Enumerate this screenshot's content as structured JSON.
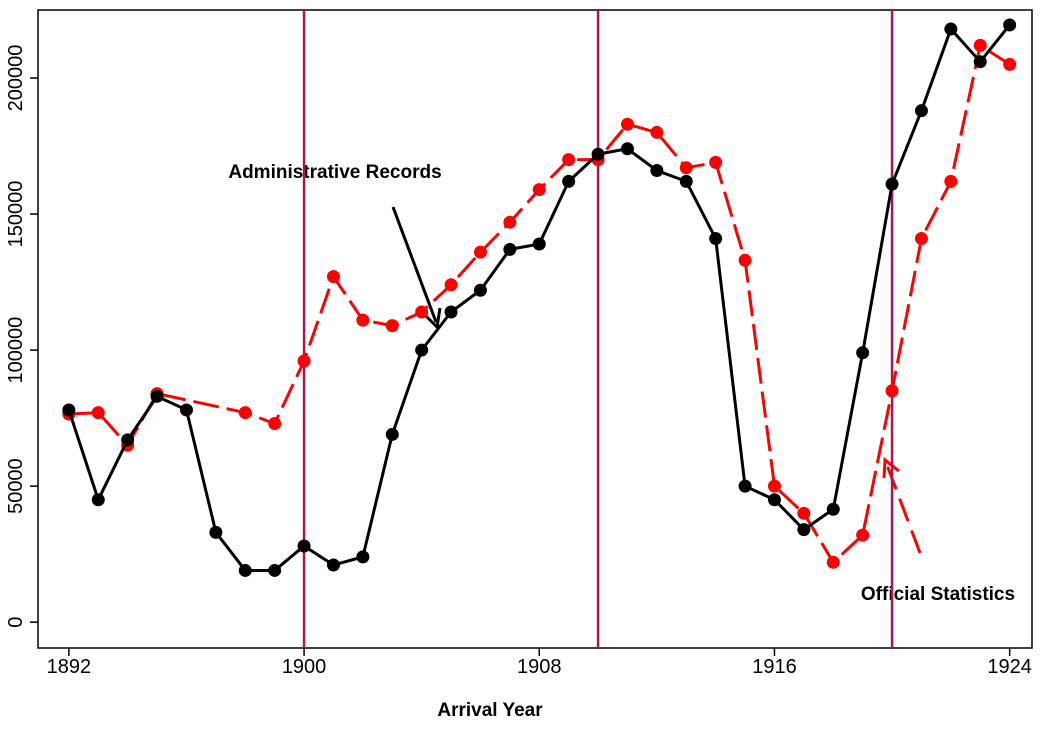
{
  "chart_data": {
    "type": "line",
    "x_label": "Arrival Year",
    "xlim": [
      1890.95,
      1924.76
    ],
    "xticks": [
      1892,
      1900,
      1908,
      1916,
      1924
    ],
    "ylim": [
      -9500,
      225000
    ],
    "yticks": [
      0,
      50000,
      100000,
      150000,
      200000
    ],
    "reference_lines": {
      "x": [
        1900,
        1910,
        1920
      ],
      "color": "#b5124a"
    },
    "annotations": [
      "Administrative Records",
      "Official Statistics"
    ],
    "series": [
      {
        "color": "#000000",
        "dashed": false,
        "x": [
          1892,
          1893,
          1894,
          1895,
          1896,
          1897,
          1898,
          1899,
          1900,
          1901,
          1902,
          1903,
          1904,
          1905,
          1906,
          1907,
          1908,
          1909,
          1910,
          1911,
          1912,
          1913,
          1914,
          1915,
          1916,
          1917,
          1918,
          1919,
          1920,
          1921,
          1922,
          1923,
          1924
        ],
        "values": [
          78000,
          45000,
          67000,
          83000,
          78000,
          33000,
          19000,
          19000,
          28000,
          21000,
          24000,
          69000,
          100000,
          114000,
          122000,
          137000,
          139000,
          162000,
          172000,
          174000,
          166000,
          162000,
          141000,
          50000,
          45000,
          34000,
          41500,
          99000,
          161000,
          188000,
          218000,
          206000,
          219500
        ]
      },
      {
        "color": "#ff0000",
        "dashed": true,
        "x": [
          1892,
          1893,
          1894,
          1895,
          1898,
          1899,
          1900,
          1901,
          1902,
          1903,
          1904,
          1905,
          1906,
          1907,
          1908,
          1909,
          1910,
          1911,
          1912,
          1913,
          1914,
          1915,
          1916,
          1917,
          1918,
          1919,
          1920,
          1921,
          1922,
          1923,
          1924
        ],
        "values": [
          76500,
          77000,
          65000,
          84000,
          77000,
          73000,
          96000,
          127000,
          111000,
          109000,
          114000,
          124000,
          136000,
          147000,
          159000,
          170000,
          170000,
          183000,
          180000,
          167000,
          169000,
          133000,
          50000,
          40000,
          22000,
          32000,
          85000,
          141000,
          162000,
          212000,
          205000
        ]
      }
    ]
  }
}
